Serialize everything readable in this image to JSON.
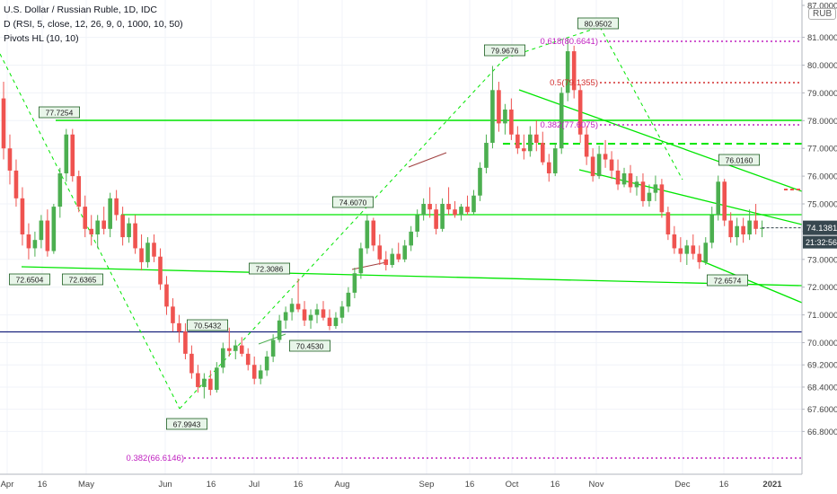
{
  "header": {
    "title": "U.S. Dollar / Russian Ruble, 1D, IDC",
    "indicator": "D (RSI, 5, close, 12, 26, 9, 0, 1000, 10, 50)",
    "pivots": "Pivots HL (10, 10)",
    "currency": "RUB"
  },
  "colors": {
    "up": "#4caf50",
    "down": "#ef5350",
    "trend": "#00e600",
    "pivot_label_bg": "#e8f5e9",
    "pivot_label_border": "#1b5e20",
    "fib": "#c020c0",
    "fib_mid": "#d32f2f",
    "blue_line": "#1a237e",
    "price_tag": "#37474f"
  },
  "chart_data": {
    "type": "candlestick",
    "y_range": [
      66.4,
      87.0
    ],
    "y_ticks": [
      "87.0000",
      "81.0000",
      "80.0000",
      "79.0000",
      "78.0000",
      "77.0000",
      "76.0000",
      "75.0000",
      "74.0000",
      "73.0000",
      "72.0000",
      "71.0000",
      "70.0000",
      "69.2000",
      "68.4000",
      "67.6000",
      "66.8000"
    ],
    "x_ticks": [
      "Apr",
      "16",
      "May",
      "Jun",
      "16",
      "Jul",
      "16",
      "Aug",
      "Sep",
      "16",
      "Oct",
      "16",
      "Nov",
      "Dec",
      "16",
      "2021"
    ],
    "last_price": "74.1381",
    "countdown": "21:32:56",
    "pivot_labels": [
      "77.7254",
      "72.6504",
      "72.6365",
      "70.5432",
      "72.3086",
      "67.9943",
      "70.4530",
      "74.6070",
      "79.9676",
      "80.9502",
      "76.0160",
      "72.6574"
    ],
    "fib_labels": [
      "0.618(80.6641)",
      "0.5(79.1355)",
      "0.382(77.6075)",
      "0.382(66.6146)"
    ],
    "candles": [
      [
        78.8,
        79.4,
        76.6,
        77.0
      ],
      [
        77.0,
        77.5,
        75.7,
        76.2
      ],
      [
        76.2,
        76.6,
        74.9,
        75.2
      ],
      [
        75.2,
        75.6,
        73.5,
        73.9
      ],
      [
        73.9,
        74.3,
        73.0,
        73.4
      ],
      [
        73.4,
        74.0,
        73.1,
        73.7
      ],
      [
        73.7,
        74.6,
        73.4,
        74.4
      ],
      [
        74.4,
        74.8,
        73.1,
        73.3
      ],
      [
        73.3,
        75.0,
        73.2,
        74.9
      ],
      [
        74.9,
        76.3,
        74.5,
        76.1
      ],
      [
        76.1,
        77.7,
        75.8,
        77.5
      ],
      [
        77.5,
        77.7,
        75.8,
        76.0
      ],
      [
        76.0,
        76.2,
        74.7,
        74.9
      ],
      [
        74.9,
        75.3,
        73.8,
        74.1
      ],
      [
        74.1,
        74.6,
        73.5,
        73.9
      ],
      [
        73.9,
        74.6,
        73.4,
        74.4
      ],
      [
        74.4,
        74.9,
        73.9,
        74.1
      ],
      [
        74.1,
        75.4,
        73.8,
        75.2
      ],
      [
        75.2,
        75.5,
        74.4,
        74.6
      ],
      [
        74.6,
        74.9,
        73.5,
        73.8
      ],
      [
        73.8,
        74.5,
        73.6,
        74.3
      ],
      [
        74.3,
        74.6,
        73.2,
        73.4
      ],
      [
        73.4,
        73.9,
        72.6,
        72.9
      ],
      [
        72.9,
        73.8,
        72.7,
        73.6
      ],
      [
        73.6,
        73.9,
        72.9,
        73.1
      ],
      [
        73.1,
        73.4,
        71.9,
        72.1
      ],
      [
        72.1,
        72.4,
        71.0,
        71.3
      ],
      [
        71.3,
        71.6,
        70.4,
        70.7
      ],
      [
        70.7,
        71.0,
        70.0,
        70.4
      ],
      [
        70.4,
        70.7,
        69.4,
        69.6
      ],
      [
        69.6,
        69.9,
        68.7,
        68.9
      ],
      [
        68.9,
        69.2,
        68.2,
        68.4
      ],
      [
        68.4,
        68.9,
        67.99,
        68.7
      ],
      [
        68.7,
        69.0,
        68.1,
        68.3
      ],
      [
        68.3,
        69.3,
        68.2,
        69.1
      ],
      [
        69.1,
        70.0,
        68.9,
        69.8
      ],
      [
        69.8,
        70.54,
        69.5,
        69.7
      ],
      [
        69.7,
        70.1,
        69.4,
        69.9
      ],
      [
        69.9,
        70.2,
        69.5,
        69.6
      ],
      [
        69.6,
        69.8,
        69.0,
        69.2
      ],
      [
        69.2,
        69.5,
        68.5,
        68.7
      ],
      [
        68.7,
        69.2,
        68.5,
        69.0
      ],
      [
        69.0,
        69.7,
        68.8,
        69.5
      ],
      [
        69.5,
        70.3,
        69.3,
        70.1
      ],
      [
        70.1,
        71.0,
        70.0,
        70.8
      ],
      [
        70.8,
        71.3,
        70.5,
        71.1
      ],
      [
        71.1,
        71.6,
        70.8,
        71.4
      ],
      [
        71.4,
        72.31,
        71.1,
        71.2
      ],
      [
        71.2,
        71.5,
        70.6,
        70.8
      ],
      [
        70.8,
        71.2,
        70.5,
        71.0
      ],
      [
        71.0,
        71.4,
        70.7,
        71.2
      ],
      [
        71.2,
        71.5,
        70.8,
        70.9
      ],
      [
        70.9,
        71.2,
        70.45,
        70.6
      ],
      [
        70.6,
        71.1,
        70.5,
        70.9
      ],
      [
        70.9,
        71.5,
        70.7,
        71.3
      ],
      [
        71.3,
        72.0,
        71.1,
        71.8
      ],
      [
        71.8,
        72.7,
        71.6,
        72.5
      ],
      [
        72.5,
        73.6,
        72.3,
        73.4
      ],
      [
        73.4,
        74.61,
        73.2,
        74.4
      ],
      [
        74.4,
        74.5,
        73.3,
        73.5
      ],
      [
        73.5,
        73.9,
        72.8,
        73.0
      ],
      [
        73.0,
        73.3,
        72.6,
        72.8
      ],
      [
        72.8,
        73.4,
        72.7,
        73.2
      ],
      [
        73.2,
        73.6,
        72.9,
        73.0
      ],
      [
        73.0,
        73.7,
        72.9,
        73.5
      ],
      [
        73.5,
        74.2,
        73.3,
        74.0
      ],
      [
        74.0,
        74.8,
        73.8,
        74.6
      ],
      [
        74.6,
        75.2,
        74.4,
        75.0
      ],
      [
        75.0,
        75.6,
        74.5,
        74.8
      ],
      [
        74.8,
        75.0,
        73.9,
        74.1
      ],
      [
        74.1,
        75.2,
        74.0,
        75.0
      ],
      [
        75.0,
        75.6,
        74.6,
        74.8
      ],
      [
        74.8,
        75.1,
        74.5,
        74.6
      ],
      [
        74.6,
        75.0,
        74.4,
        74.9
      ],
      [
        74.9,
        75.3,
        74.6,
        74.7
      ],
      [
        74.7,
        75.5,
        74.6,
        75.3
      ],
      [
        75.3,
        76.5,
        75.1,
        76.3
      ],
      [
        76.3,
        77.5,
        76.1,
        77.2
      ],
      [
        77.2,
        79.97,
        77.0,
        79.1
      ],
      [
        79.1,
        79.4,
        77.6,
        77.9
      ],
      [
        77.9,
        78.6,
        77.5,
        78.4
      ],
      [
        78.4,
        78.8,
        77.3,
        77.5
      ],
      [
        77.5,
        77.8,
        76.8,
        77.0
      ],
      [
        77.0,
        77.5,
        76.6,
        76.9
      ],
      [
        76.9,
        77.8,
        76.7,
        77.5
      ],
      [
        77.5,
        78.0,
        76.9,
        77.2
      ],
      [
        77.2,
        77.6,
        76.4,
        76.5
      ],
      [
        76.5,
        76.8,
        75.8,
        76.1
      ],
      [
        76.1,
        77.2,
        76.0,
        77.0
      ],
      [
        77.0,
        79.2,
        76.8,
        79.0
      ],
      [
        79.0,
        80.95,
        78.7,
        80.5
      ],
      [
        80.5,
        80.7,
        78.8,
        79.1
      ],
      [
        79.1,
        79.3,
        77.2,
        77.5
      ],
      [
        77.5,
        77.8,
        76.4,
        76.7
      ],
      [
        76.7,
        77.0,
        75.8,
        76.0
      ],
      [
        76.0,
        77.1,
        75.9,
        76.8
      ],
      [
        76.8,
        77.3,
        76.3,
        76.6
      ],
      [
        76.6,
        76.9,
        75.9,
        76.2
      ],
      [
        76.2,
        76.6,
        75.5,
        75.7
      ],
      [
        75.7,
        76.3,
        75.6,
        76.1
      ],
      [
        76.1,
        76.4,
        75.4,
        75.6
      ],
      [
        75.6,
        76.0,
        75.3,
        75.8
      ],
      [
        75.8,
        76.1,
        74.9,
        75.1
      ],
      [
        75.1,
        75.7,
        74.9,
        75.4
      ],
      [
        75.4,
        76.02,
        75.1,
        75.7
      ],
      [
        75.7,
        75.9,
        74.5,
        74.7
      ],
      [
        74.7,
        74.9,
        73.7,
        73.9
      ],
      [
        73.9,
        74.2,
        73.2,
        73.4
      ],
      [
        73.4,
        73.8,
        72.9,
        73.2
      ],
      [
        73.2,
        73.7,
        72.8,
        73.5
      ],
      [
        73.5,
        73.9,
        73.0,
        73.2
      ],
      [
        73.2,
        73.5,
        72.66,
        72.9
      ],
      [
        72.9,
        73.8,
        72.8,
        73.6
      ],
      [
        73.6,
        74.9,
        73.4,
        74.6
      ],
      [
        74.6,
        76.02,
        74.4,
        75.8
      ],
      [
        75.8,
        75.9,
        74.2,
        74.4
      ],
      [
        74.4,
        74.7,
        73.6,
        73.8
      ],
      [
        73.8,
        74.5,
        73.5,
        74.2
      ],
      [
        74.2,
        74.5,
        73.6,
        73.9
      ],
      [
        73.9,
        74.8,
        73.7,
        74.4
      ],
      [
        74.4,
        75.0,
        73.9,
        74.1
      ],
      [
        74.1,
        74.4,
        73.8,
        74.14
      ]
    ]
  }
}
